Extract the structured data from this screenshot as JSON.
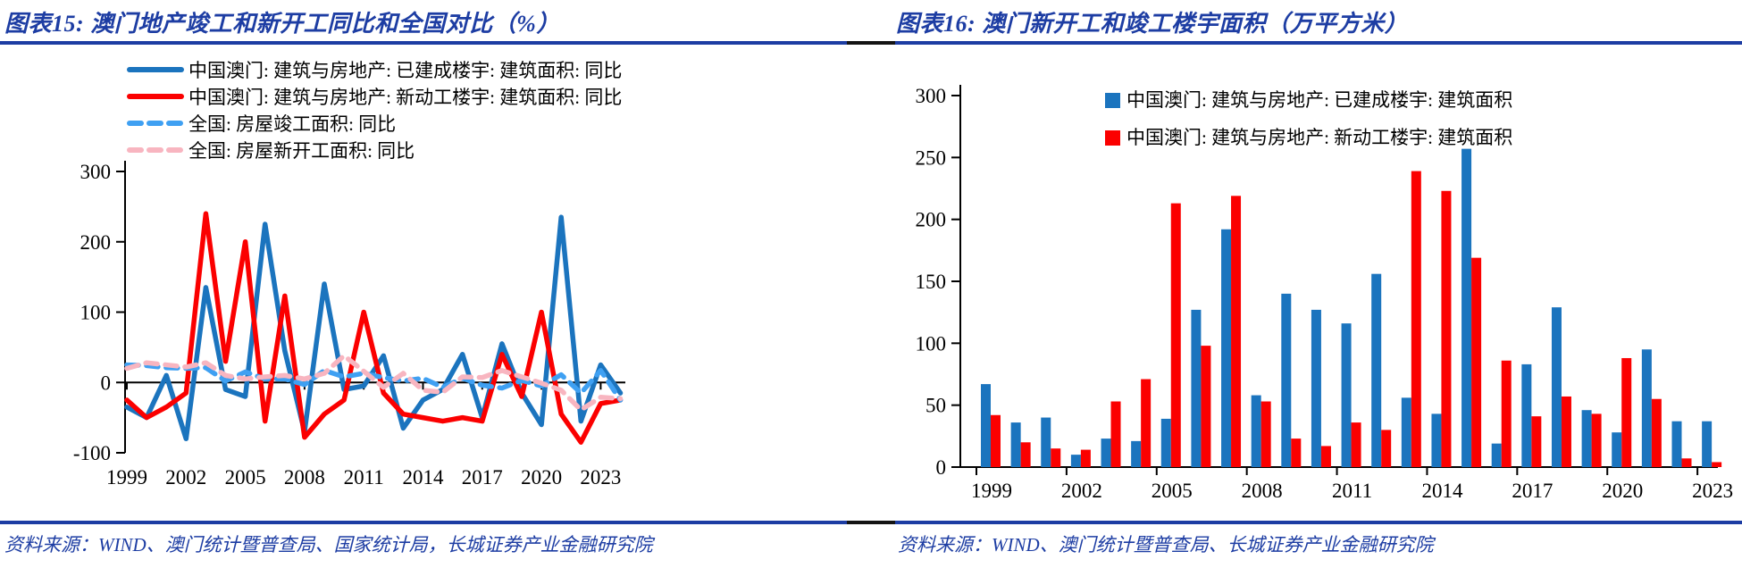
{
  "page": {
    "accent_navy": "#1d3da3",
    "background": "#ffffff"
  },
  "figure15": {
    "title": "图表15:  澳门地产竣工和新开工同比和全国对比（%）",
    "source": "资料来源：WIND、澳门统计暨普查局、国家统计局，长城证券产业金融研究院",
    "chart_data": {
      "type": "line",
      "x": [
        1999,
        2000,
        2001,
        2002,
        2003,
        2004,
        2005,
        2006,
        2007,
        2008,
        2009,
        2010,
        2011,
        2012,
        2013,
        2014,
        2015,
        2016,
        2017,
        2018,
        2019,
        2020,
        2021,
        2022,
        2023,
        2024
      ],
      "series": [
        {
          "name": "中国澳门: 建筑与房地产: 已建成楼宇: 建筑面积: 同比",
          "color": "#1b74be",
          "style": "solid",
          "values": [
            -35,
            -50,
            10,
            -80,
            135,
            -10,
            -20,
            225,
            45,
            -70,
            140,
            -10,
            -5,
            38,
            -65,
            -25,
            -10,
            40,
            -50,
            55,
            -15,
            -60,
            235,
            -55,
            25,
            -15
          ]
        },
        {
          "name": "中国澳门: 建筑与房地产: 新动工楼宇: 建筑面积: 同比",
          "color": "#fb0000",
          "style": "solid",
          "values": [
            -25,
            -50,
            -35,
            -15,
            240,
            30,
            200,
            -55,
            123,
            -78,
            -45,
            -25,
            100,
            -15,
            -45,
            -50,
            -55,
            -50,
            -55,
            40,
            -20,
            100,
            -45,
            -85,
            -30,
            -25
          ]
        },
        {
          "name": "全国: 房屋竣工面积: 同比",
          "color": "#3fa0f2",
          "style": "dashed",
          "values": [
            25,
            24,
            21,
            20,
            21,
            2,
            15,
            5,
            5,
            -3,
            17,
            8,
            13,
            7,
            2,
            6,
            -7,
            6,
            -4,
            -8,
            3,
            -5,
            11,
            -15,
            17,
            -25
          ]
        },
        {
          "name": "全国: 房屋新开工面积: 同比",
          "color": "#f8b5c0",
          "style": "dashed",
          "values": [
            20,
            28,
            25,
            22,
            28,
            10,
            5,
            8,
            10,
            5,
            13,
            38,
            16,
            -7,
            13,
            -11,
            -14,
            8,
            7,
            17,
            8,
            -1,
            -11,
            -39,
            -21,
            -23
          ]
        }
      ],
      "ylim": [
        -100,
        300
      ],
      "yticks": [
        300,
        200,
        100,
        0,
        -100
      ],
      "xticks": [
        1999,
        2002,
        2005,
        2008,
        2011,
        2014,
        2017,
        2020,
        2023
      ],
      "xlabel": "",
      "ylabel": "",
      "grid": false,
      "legend_position": "top-left-inside"
    }
  },
  "figure16": {
    "title": "图表16:  澳门新开工和竣工楼宇面积（万平方米）",
    "source": "资料来源：WIND、澳门统计暨普查局、长城证券产业金融研究院",
    "chart_data": {
      "type": "bar",
      "categories": [
        1999,
        2000,
        2001,
        2002,
        2003,
        2004,
        2005,
        2006,
        2007,
        2008,
        2009,
        2010,
        2011,
        2012,
        2013,
        2014,
        2015,
        2016,
        2017,
        2018,
        2019,
        2020,
        2021,
        2022,
        2023
      ],
      "series": [
        {
          "name": "中国澳门: 建筑与房地产: 已建成楼宇: 建筑面积",
          "color": "#1b74be",
          "values": [
            67,
            36,
            40,
            10,
            23,
            21,
            39,
            127,
            192,
            58,
            140,
            127,
            116,
            156,
            56,
            43,
            257,
            19,
            83,
            129,
            46,
            28,
            95,
            37,
            37
          ]
        },
        {
          "name": "中国澳门: 建筑与房地产: 新动工楼宇: 建筑面积",
          "color": "#fb0000",
          "values": [
            42,
            20,
            15,
            14,
            53,
            71,
            213,
            98,
            219,
            53,
            23,
            17,
            36,
            30,
            239,
            223,
            169,
            86,
            41,
            57,
            43,
            88,
            55,
            7,
            4
          ]
        }
      ],
      "ylim": [
        0,
        300
      ],
      "yticks": [
        0,
        50,
        100,
        150,
        200,
        250,
        300
      ],
      "xticks": [
        1999,
        2002,
        2005,
        2008,
        2011,
        2014,
        2017,
        2020,
        2023
      ],
      "xlabel": "",
      "ylabel": "",
      "grid": false,
      "legend_position": "top-inside"
    }
  }
}
